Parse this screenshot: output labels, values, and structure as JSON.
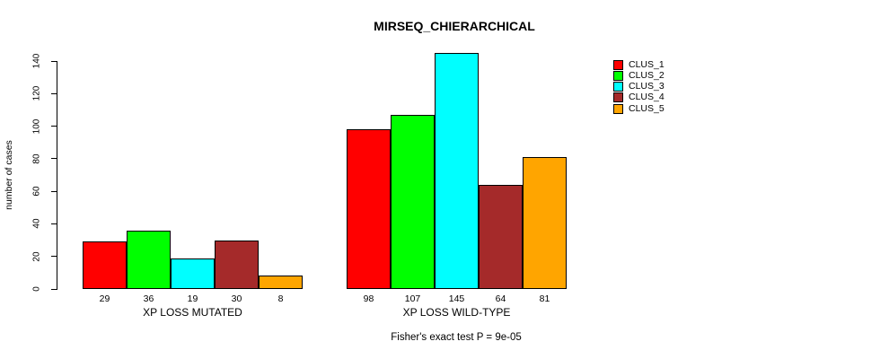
{
  "title": "MIRSEQ_CHIERARCHICAL",
  "footer": "Fisher's exact test P = 9e-05",
  "chart_data": {
    "type": "bar",
    "title": "MIRSEQ_CHIERARCHICAL",
    "xlabel": "",
    "ylabel": "number of cases",
    "categories": [
      "XP LOSS MUTATED",
      "XP LOSS WILD-TYPE"
    ],
    "series": [
      {
        "name": "CLUS_1",
        "color": "#ff0000",
        "values": [
          29,
          98
        ]
      },
      {
        "name": "CLUS_2",
        "color": "#00ff00",
        "values": [
          36,
          107
        ]
      },
      {
        "name": "CLUS_3",
        "color": "#00ffff",
        "values": [
          19,
          145
        ]
      },
      {
        "name": "CLUS_4",
        "color": "#a52a2a",
        "values": [
          30,
          64
        ]
      },
      {
        "name": "CLUS_5",
        "color": "#ffa500",
        "values": [
          8,
          81
        ]
      }
    ],
    "bar_value_labels_shown": true,
    "yticks": [
      0,
      20,
      40,
      60,
      80,
      100,
      120,
      140
    ],
    "ylim": [
      0,
      145
    ],
    "grid": false,
    "legend_position": "right",
    "annotation": "Fisher's exact test P = 9e-05",
    "bar_border_color": "#000000"
  }
}
